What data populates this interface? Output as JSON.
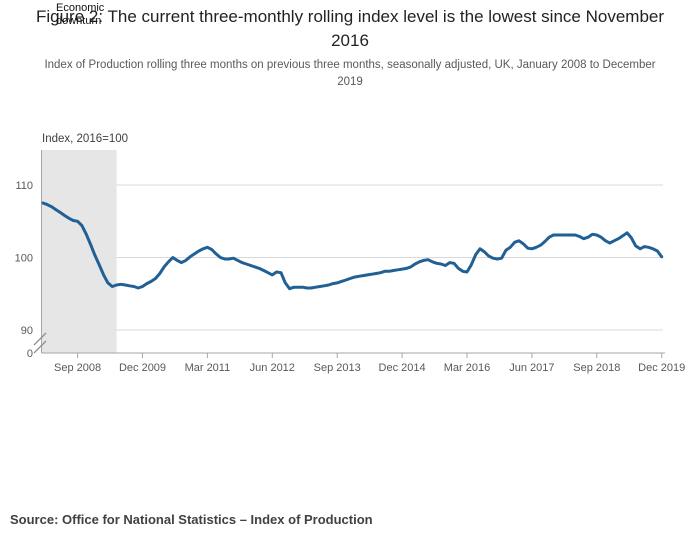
{
  "figure": {
    "title": "Figure 2: The current three-monthly rolling index level is the lowest since November 2016",
    "subtitle": "Index of Production rolling three months on previous three months, seasonally adjusted, UK, January 2008 to December 2019",
    "annotation": "Economic\ndownturn",
    "source": "Source: Office for National Statistics – Index of Production"
  },
  "colors": {
    "line": "#206095",
    "shading": "#e6e6e6",
    "gridline": "#d9d9d9",
    "axis": "#a6a6a6",
    "axis_break": "#808080",
    "tick_text": "#595959"
  },
  "chart_data": {
    "type": "line",
    "title": "Figure 2: The current three-monthly rolling index level is the lowest since November 2016",
    "subtitle": "Index of Production rolling three months on previous three months, seasonally adjusted, UK, January 2008 to December 2019",
    "ylabel": "Index, 2016=100",
    "frequency": "monthly",
    "x_start": "Jan 2008",
    "x_end": "Dec 2019",
    "x_tick_labels": [
      "Sep 2008",
      "Dec 2009",
      "Mar 2011",
      "Jun 2012",
      "Sep 2013",
      "Dec 2014",
      "Mar 2016",
      "Jun 2017",
      "Sep 2018",
      "Dec 2019"
    ],
    "x_tick_months": [
      8,
      23,
      38,
      53,
      68,
      83,
      98,
      113,
      128,
      143
    ],
    "y_gridlines": [
      110,
      100,
      90
    ],
    "y_tick_labels": [
      "110",
      "100",
      "90"
    ],
    "zero_label": "0",
    "axis_break": true,
    "ylim_shown": [
      90,
      113
    ],
    "grid": true,
    "legend": "none",
    "shaded_region": {
      "label": "Economic downturn",
      "start_month": 0,
      "end_month": 17
    },
    "series": [
      {
        "name": "Index of Production, rolling three months on previous three months",
        "values": [
          107.5,
          107.3,
          107.0,
          106.6,
          106.2,
          105.8,
          105.4,
          105.1,
          105.0,
          104.4,
          103.2,
          101.8,
          100.3,
          99.0,
          97.6,
          96.5,
          96.0,
          96.2,
          96.3,
          96.2,
          96.1,
          96.0,
          95.8,
          96.0,
          96.4,
          96.7,
          97.1,
          97.8,
          98.7,
          99.4,
          100.0,
          99.6,
          99.3,
          99.6,
          100.1,
          100.5,
          100.9,
          101.2,
          101.4,
          101.1,
          100.5,
          100.0,
          99.8,
          99.8,
          99.9,
          99.6,
          99.3,
          99.1,
          98.9,
          98.7,
          98.5,
          98.2,
          97.9,
          97.6,
          98.0,
          97.9,
          96.5,
          95.7,
          95.9,
          95.9,
          95.9,
          95.8,
          95.8,
          95.9,
          96.0,
          96.1,
          96.2,
          96.4,
          96.5,
          96.7,
          96.9,
          97.1,
          97.3,
          97.4,
          97.5,
          97.6,
          97.7,
          97.8,
          97.9,
          98.1,
          98.1,
          98.2,
          98.3,
          98.4,
          98.5,
          98.7,
          99.1,
          99.4,
          99.6,
          99.7,
          99.4,
          99.2,
          99.1,
          98.9,
          99.3,
          99.2,
          98.5,
          98.1,
          98.0,
          99.0,
          100.4,
          101.2,
          100.8,
          100.2,
          99.9,
          99.8,
          99.9,
          101.0,
          101.4,
          102.1,
          102.3,
          101.9,
          101.3,
          101.2,
          101.4,
          101.7,
          102.2,
          102.8,
          103.1,
          103.1,
          103.1,
          103.1,
          103.1,
          103.1,
          102.9,
          102.6,
          102.8,
          103.2,
          103.1,
          102.8,
          102.3,
          102.0,
          102.3,
          102.6,
          103.0,
          103.4,
          102.7,
          101.6,
          101.2,
          101.5,
          101.4,
          101.2,
          100.9,
          100.1
        ]
      }
    ]
  }
}
